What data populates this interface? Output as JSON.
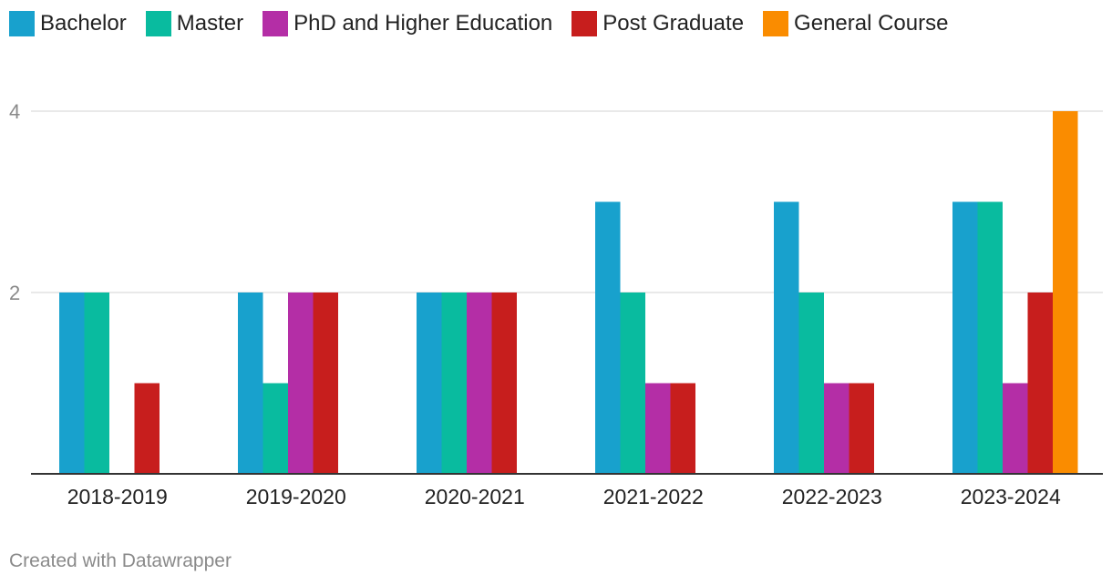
{
  "chart_data": {
    "type": "bar",
    "categories": [
      "2018-2019",
      "2019-2020",
      "2020-2021",
      "2021-2022",
      "2022-2023",
      "2023-2024"
    ],
    "series": [
      {
        "name": "Bachelor",
        "color": "#18a1cd",
        "values": [
          2,
          2,
          2,
          3,
          3,
          3
        ]
      },
      {
        "name": "Master",
        "color": "#09bb9f",
        "values": [
          2,
          1,
          2,
          2,
          2,
          3
        ]
      },
      {
        "name": "PhD and Higher Education",
        "color": "#b42ea6",
        "values": [
          0,
          2,
          2,
          1,
          1,
          1
        ]
      },
      {
        "name": "Post Graduate",
        "color": "#c71e1d",
        "values": [
          1,
          2,
          2,
          1,
          1,
          2
        ]
      },
      {
        "name": "General Course",
        "color": "#fa8c00",
        "values": [
          0,
          0,
          0,
          0,
          0,
          4
        ]
      }
    ],
    "y_ticks": [
      "2",
      "4"
    ],
    "ylim": [
      0,
      4
    ],
    "grid": true,
    "legend_position": "top-left"
  },
  "footer": {
    "credit": "Created with Datawrapper"
  }
}
